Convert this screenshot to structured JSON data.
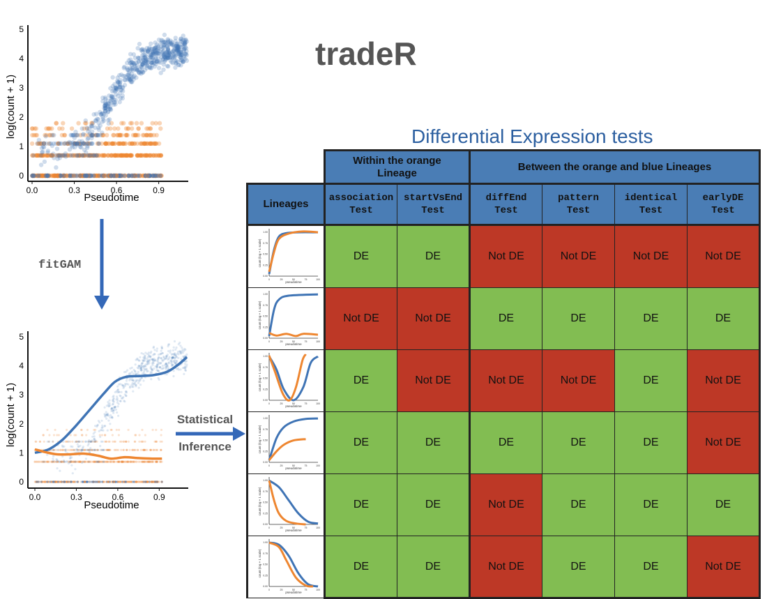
{
  "title": "tradeR",
  "de_title": "Differential Expression tests",
  "fit_label": "fitGAM",
  "inference_label": [
    "Statistical",
    "Inference"
  ],
  "plot_top": {
    "ylabel": "log(count + 1)",
    "xlabel": "Pseudotime",
    "xticks": [
      "0.0",
      "0.3",
      "0.6",
      "0.9"
    ],
    "yticks": [
      "0",
      "1",
      "2",
      "3",
      "4",
      "5"
    ]
  },
  "plot_bottom": {
    "ylabel": "log(count + 1)",
    "xlabel": "Pseudotime",
    "xticks": [
      "0.0",
      "0.3",
      "0.6",
      "0.9"
    ],
    "yticks": [
      "0",
      "1",
      "2",
      "3",
      "4",
      "5"
    ]
  },
  "colors": {
    "blue": "#3f74b5",
    "orange": "#ee8630",
    "de": "#82bd52",
    "notde": "#bd3826",
    "header": "#4a7db5"
  },
  "table": {
    "group_within": "Within the orange Lineage",
    "group_between": "Between the orange and blue Lineages",
    "lineages_label": "Lineages",
    "columns": [
      {
        "line1": "association",
        "line2": "Test"
      },
      {
        "line1": "startVsEnd",
        "line2": "Test"
      },
      {
        "line1": "diffEnd",
        "line2": "Test"
      },
      {
        "line1": "pattern",
        "line2": "Test"
      },
      {
        "line1": "identical",
        "line2": "Test"
      },
      {
        "line1": "earlyDE",
        "line2": "Test"
      }
    ],
    "rows": [
      [
        "DE",
        "DE",
        "Not DE",
        "Not DE",
        "Not DE",
        "Not DE"
      ],
      [
        "Not DE",
        "Not DE",
        "DE",
        "DE",
        "DE",
        "DE"
      ],
      [
        "DE",
        "Not DE",
        "Not DE",
        "Not DE",
        "DE",
        "Not DE"
      ],
      [
        "DE",
        "DE",
        "DE",
        "DE",
        "DE",
        "Not DE"
      ],
      [
        "DE",
        "DE",
        "Not DE",
        "DE",
        "DE",
        "DE"
      ],
      [
        "DE",
        "DE",
        "Not DE",
        "DE",
        "DE",
        "Not DE"
      ]
    ],
    "thumb_ylabel": "count (log + 1 scale)",
    "thumb_xlabel": "pseudotime"
  }
}
